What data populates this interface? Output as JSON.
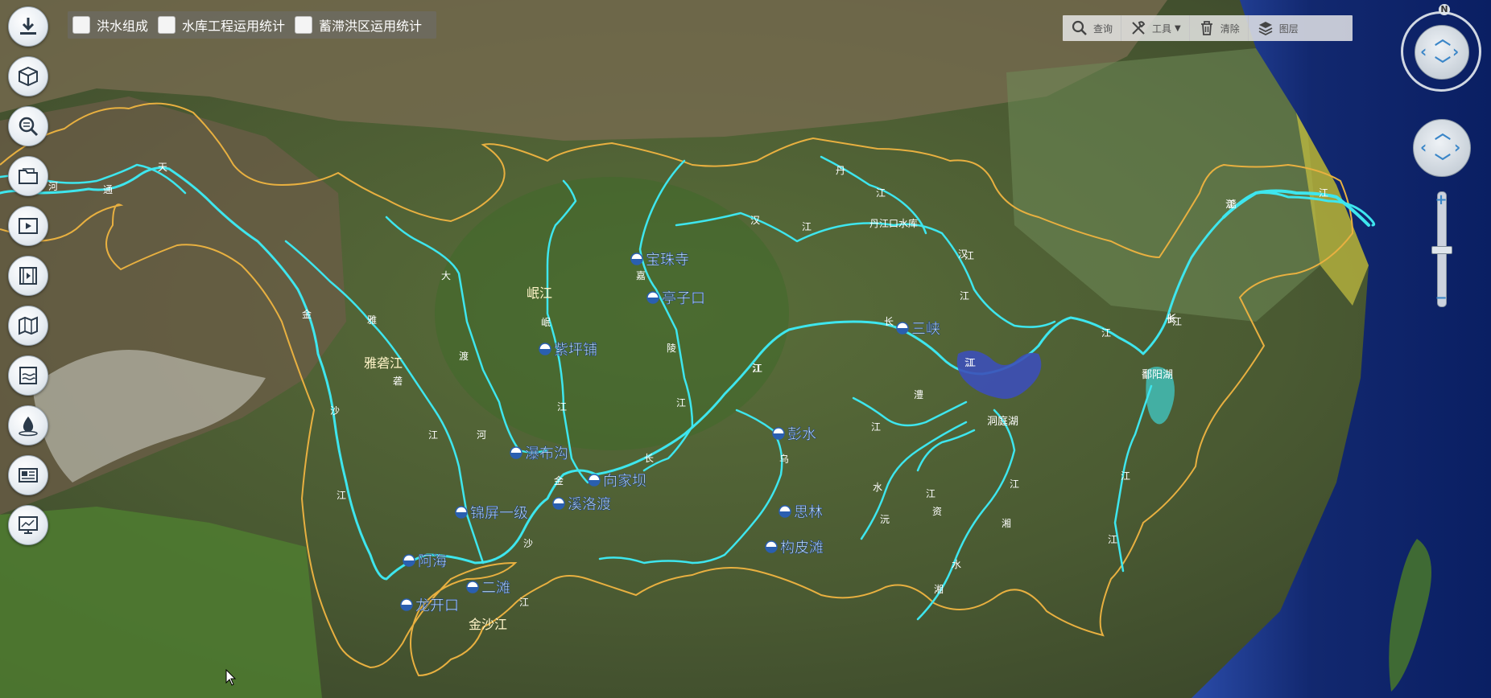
{
  "top_checkboxes": [
    {
      "label": "洪水组成",
      "checked": false
    },
    {
      "label": "水库工程运用统计",
      "checked": false
    },
    {
      "label": "蓄滞洪区运用统计",
      "checked": false
    }
  ],
  "toolbar": {
    "query_label": "查询",
    "tools_label": "工具",
    "clear_label": "清除",
    "layers_label": "图层"
  },
  "compass_letter": "N",
  "left_tools": [
    {
      "icon": "download-icon"
    },
    {
      "icon": "cube-3d-icon"
    },
    {
      "icon": "zoom-search-icon"
    },
    {
      "icon": "folder-icon"
    },
    {
      "icon": "video-play-icon"
    },
    {
      "icon": "film-icon"
    },
    {
      "icon": "map-icon"
    },
    {
      "icon": "water-level-icon"
    },
    {
      "icon": "water-drop-icon"
    },
    {
      "icon": "monitor-card-icon"
    },
    {
      "icon": "screen-chart-icon"
    }
  ],
  "stations": [
    {
      "name": "宝珠寺"
    },
    {
      "name": "亭子口"
    },
    {
      "name": "紫坪铺"
    },
    {
      "name": "瀑布沟"
    },
    {
      "name": "向家坝"
    },
    {
      "name": "溪洛渡"
    },
    {
      "name": "锦屏一级"
    },
    {
      "name": "阿海"
    },
    {
      "name": "二滩"
    },
    {
      "name": "龙开口"
    },
    {
      "name": "三峡"
    },
    {
      "name": "彭水"
    },
    {
      "name": "思林"
    },
    {
      "name": "构皮滩"
    }
  ],
  "place_labels": [
    "岷江",
    "雅砻江",
    "金沙江",
    "丹江口水库",
    "洞庭湖",
    "鄱阳湖"
  ],
  "river_chars": [
    "天",
    "河",
    "通",
    "金",
    "沙",
    "江",
    "雅",
    "砻",
    "江",
    "大",
    "渡",
    "河",
    "岷",
    "江",
    "嘉",
    "陵",
    "江",
    "金",
    "沙",
    "江",
    "长",
    "江",
    "汉",
    "江",
    "丹",
    "江",
    "汉",
    "江",
    "长",
    "江",
    "江",
    "乌",
    "江",
    "澧",
    "水",
    "沅",
    "江",
    "资",
    "水",
    "湘",
    "江",
    "湘",
    "江",
    "长",
    "江",
    "江",
    "赣",
    "江",
    "长",
    "江",
    "江",
    "江",
    "江",
    "长"
  ],
  "colors": {
    "river": "#3ee6ee",
    "boundary": "#e8b040",
    "station_text": "#cfe9ff",
    "label_text": "#fff4c8"
  }
}
